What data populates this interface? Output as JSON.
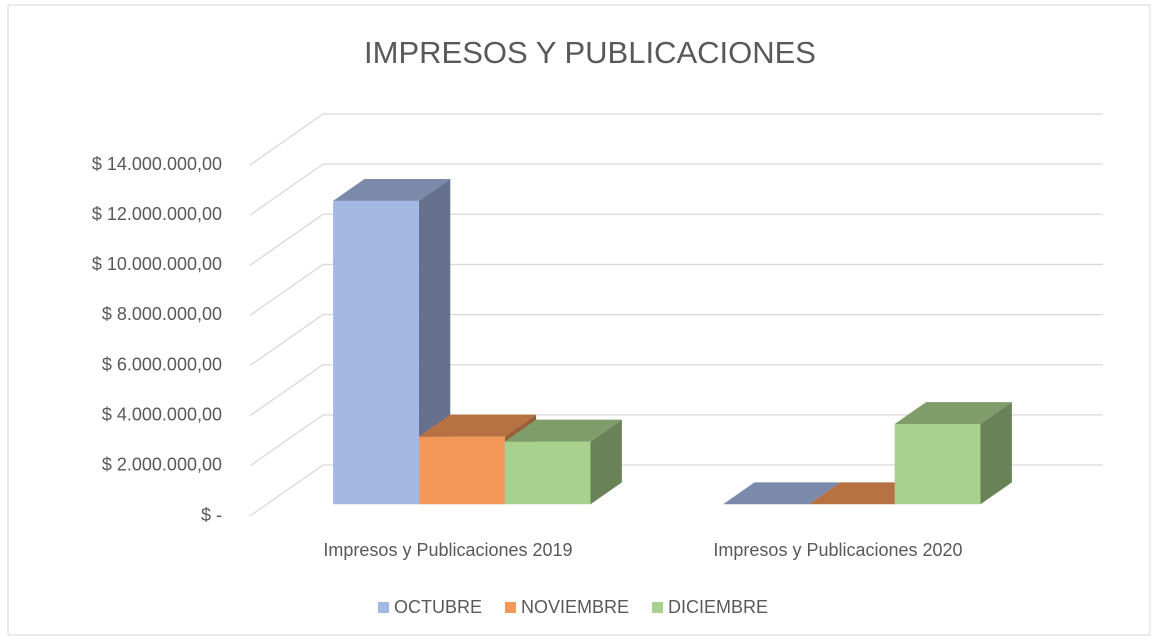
{
  "chart_data": {
    "type": "bar3d",
    "title": "IMPRESOS Y PUBLICACIONES",
    "categories": [
      "Impresos y Publicaciones 2019",
      "Impresos y Publicaciones 2020"
    ],
    "series": [
      {
        "name": "OCTUBRE",
        "color": "#a4b8e4",
        "values": [
          12100000,
          0
        ]
      },
      {
        "name": "NOVIEMBRE",
        "color": "#f4985a",
        "values": [
          2700000,
          0
        ]
      },
      {
        "name": "DICIEMBRE",
        "color": "#a9d18e",
        "values": [
          2500000,
          3200000
        ]
      }
    ],
    "ylim": [
      0,
      14000000
    ],
    "yticks": [
      {
        "value": 0,
        "label": "$ -"
      },
      {
        "value": 2000000,
        "label": "$ 2.000.000,00"
      },
      {
        "value": 4000000,
        "label": "$ 4.000.000,00"
      },
      {
        "value": 6000000,
        "label": "$ 6.000.000,00"
      },
      {
        "value": 8000000,
        "label": "$ 8.000.000,00"
      },
      {
        "value": 10000000,
        "label": "$ 10.000.000,00"
      },
      {
        "value": 12000000,
        "label": "$ 12.000.000,00"
      },
      {
        "value": 14000000,
        "label": "$ 14.000.000,00"
      }
    ],
    "grid": true,
    "legend": "bottom"
  }
}
